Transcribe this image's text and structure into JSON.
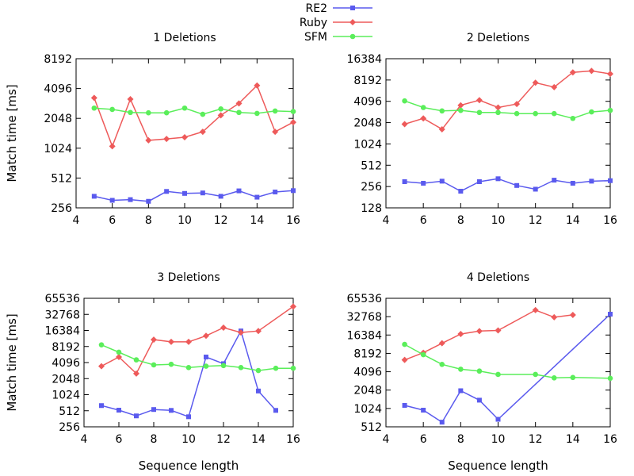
{
  "legend": {
    "position": "top-center",
    "entries": [
      {
        "name": "RE2",
        "color": "#5a5aee",
        "marker": "square"
      },
      {
        "name": "Ruby",
        "color": "#ee5a5a",
        "marker": "diamond"
      },
      {
        "name": "SFM",
        "color": "#5aee5a",
        "marker": "circle"
      }
    ]
  },
  "chart_data": [
    {
      "type": "line",
      "title": "1 Deletions",
      "xlabel": "",
      "ylabel": "Match time [ms]",
      "xlim": [
        4,
        16
      ],
      "ylim": [
        256,
        8192
      ],
      "yscale": "log2",
      "xticks": [
        4,
        6,
        8,
        10,
        12,
        14,
        16
      ],
      "yticks": [
        256,
        512,
        1024,
        2048,
        4096,
        8192
      ],
      "x": [
        5,
        6,
        7,
        8,
        9,
        10,
        11,
        12,
        13,
        14,
        15,
        16
      ],
      "series": [
        {
          "name": "RE2",
          "values": [
            335,
            305,
            310,
            298,
            375,
            358,
            362,
            335,
            380,
            328,
            370,
            382
          ]
        },
        {
          "name": "Ruby",
          "values": [
            3300,
            1070,
            3200,
            1230,
            1270,
            1320,
            1500,
            2200,
            2900,
            4400,
            1500,
            1870
          ]
        },
        {
          "name": "SFM",
          "values": [
            2600,
            2520,
            2350,
            2330,
            2330,
            2600,
            2250,
            2550,
            2350,
            2300,
            2430,
            2400
          ]
        }
      ]
    },
    {
      "type": "line",
      "title": "2 Deletions",
      "xlabel": "",
      "ylabel": "",
      "xlim": [
        4,
        16
      ],
      "ylim": [
        128,
        16384
      ],
      "yscale": "log2",
      "xticks": [
        4,
        6,
        8,
        10,
        12,
        14,
        16
      ],
      "yticks": [
        128,
        256,
        512,
        1024,
        2048,
        4096,
        8192,
        16384
      ],
      "x": [
        5,
        6,
        7,
        8,
        9,
        10,
        11,
        12,
        13,
        14,
        15,
        16
      ],
      "series": [
        {
          "name": "RE2",
          "values": [
            300,
            285,
            305,
            220,
            300,
            330,
            265,
            235,
            315,
            285,
            305,
            310
          ]
        },
        {
          "name": "Ruby",
          "values": [
            1950,
            2350,
            1650,
            3600,
            4250,
            3350,
            3750,
            7500,
            6500,
            10500,
            11000,
            10000
          ]
        },
        {
          "name": "SFM",
          "values": [
            4150,
            3350,
            3000,
            3050,
            2850,
            2850,
            2750,
            2750,
            2750,
            2350,
            2900,
            3050
          ]
        }
      ]
    },
    {
      "type": "line",
      "title": "3 Deletions",
      "xlabel": "Sequence length",
      "ylabel": "Match time [ms]",
      "xlim": [
        4,
        16
      ],
      "ylim": [
        256,
        65536
      ],
      "yscale": "log2",
      "xticks": [
        4,
        6,
        8,
        10,
        12,
        14,
        16
      ],
      "yticks": [
        256,
        512,
        1024,
        2048,
        4096,
        8192,
        16384,
        32768,
        65536
      ],
      "x": [
        5,
        6,
        7,
        8,
        9,
        10,
        11,
        12,
        13,
        14,
        15,
        16
      ],
      "series": [
        {
          "name": "RE2",
          "values": [
            640,
            525,
            410,
            540,
            520,
            395,
            5200,
            3900,
            16000,
            1200,
            520,
            null
          ]
        },
        {
          "name": "Ruby",
          "values": [
            3500,
            5200,
            2550,
            11000,
            10000,
            10000,
            13000,
            18500,
            15000,
            16000,
            null,
            46000
          ]
        },
        {
          "name": "SFM",
          "values": [
            8800,
            6400,
            4600,
            3700,
            3800,
            3300,
            3500,
            3600,
            3300,
            2900,
            3200,
            3200
          ]
        }
      ]
    },
    {
      "type": "line",
      "title": "4 Deletions",
      "xlabel": "Sequence length",
      "ylabel": "",
      "xlim": [
        4,
        16
      ],
      "ylim": [
        512,
        65536
      ],
      "yscale": "log2",
      "xticks": [
        4,
        6,
        8,
        10,
        12,
        14,
        16
      ],
      "yticks": [
        512,
        1024,
        2048,
        4096,
        8192,
        16384,
        32768,
        65536
      ],
      "x": [
        5,
        6,
        7,
        8,
        9,
        10,
        12,
        13,
        14,
        16
      ],
      "series": [
        {
          "name": "RE2",
          "values": [
            1150,
            960,
            610,
            2000,
            1400,
            680,
            null,
            null,
            null,
            36000
          ]
        },
        {
          "name": "Ruby",
          "values": [
            6400,
            8400,
            12000,
            17000,
            19000,
            19500,
            42000,
            32000,
            35000,
            null
          ]
        },
        {
          "name": "SFM",
          "values": [
            11500,
            7800,
            5400,
            4500,
            4200,
            3700,
            3700,
            3250,
            3300,
            3200
          ]
        }
      ]
    }
  ]
}
